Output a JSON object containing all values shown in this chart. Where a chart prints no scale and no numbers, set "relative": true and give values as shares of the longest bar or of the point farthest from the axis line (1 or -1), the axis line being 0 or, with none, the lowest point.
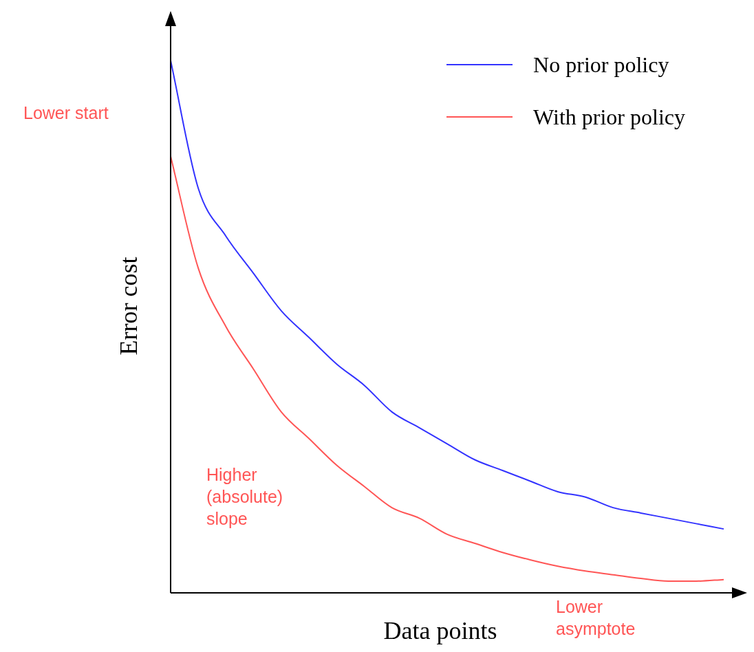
{
  "chart_data": {
    "type": "line",
    "relative": true,
    "xlabel": "Data points",
    "ylabel": "Error cost",
    "legend": "top right",
    "marker": "none",
    "categories": [
      null,
      null,
      null,
      null,
      null,
      null,
      null,
      null,
      null,
      null,
      null,
      null,
      null,
      null,
      null,
      null,
      null,
      null,
      null,
      null,
      null
    ],
    "series": [
      {
        "name": "No prior policy",
        "color": "#3333ff",
        "values": [
          1.0,
          0.76,
          0.67,
          0.6,
          0.53,
          0.48,
          0.43,
          0.39,
          0.34,
          0.31,
          0.28,
          0.25,
          0.23,
          0.21,
          0.19,
          0.18,
          0.16,
          0.15,
          0.14,
          0.13,
          0.12
        ]
      },
      {
        "name": "With prior policy",
        "color": "#ff5555",
        "values": [
          0.82,
          0.61,
          0.5,
          0.42,
          0.34,
          0.29,
          0.24,
          0.2,
          0.16,
          0.14,
          0.11,
          0.093,
          0.076,
          0.062,
          0.05,
          0.041,
          0.034,
          0.027,
          0.022,
          0.022,
          0.025
        ]
      }
    ],
    "annotations": [
      "Lower start",
      "Higher (absolute) slope",
      "Lower asymptote"
    ]
  }
}
